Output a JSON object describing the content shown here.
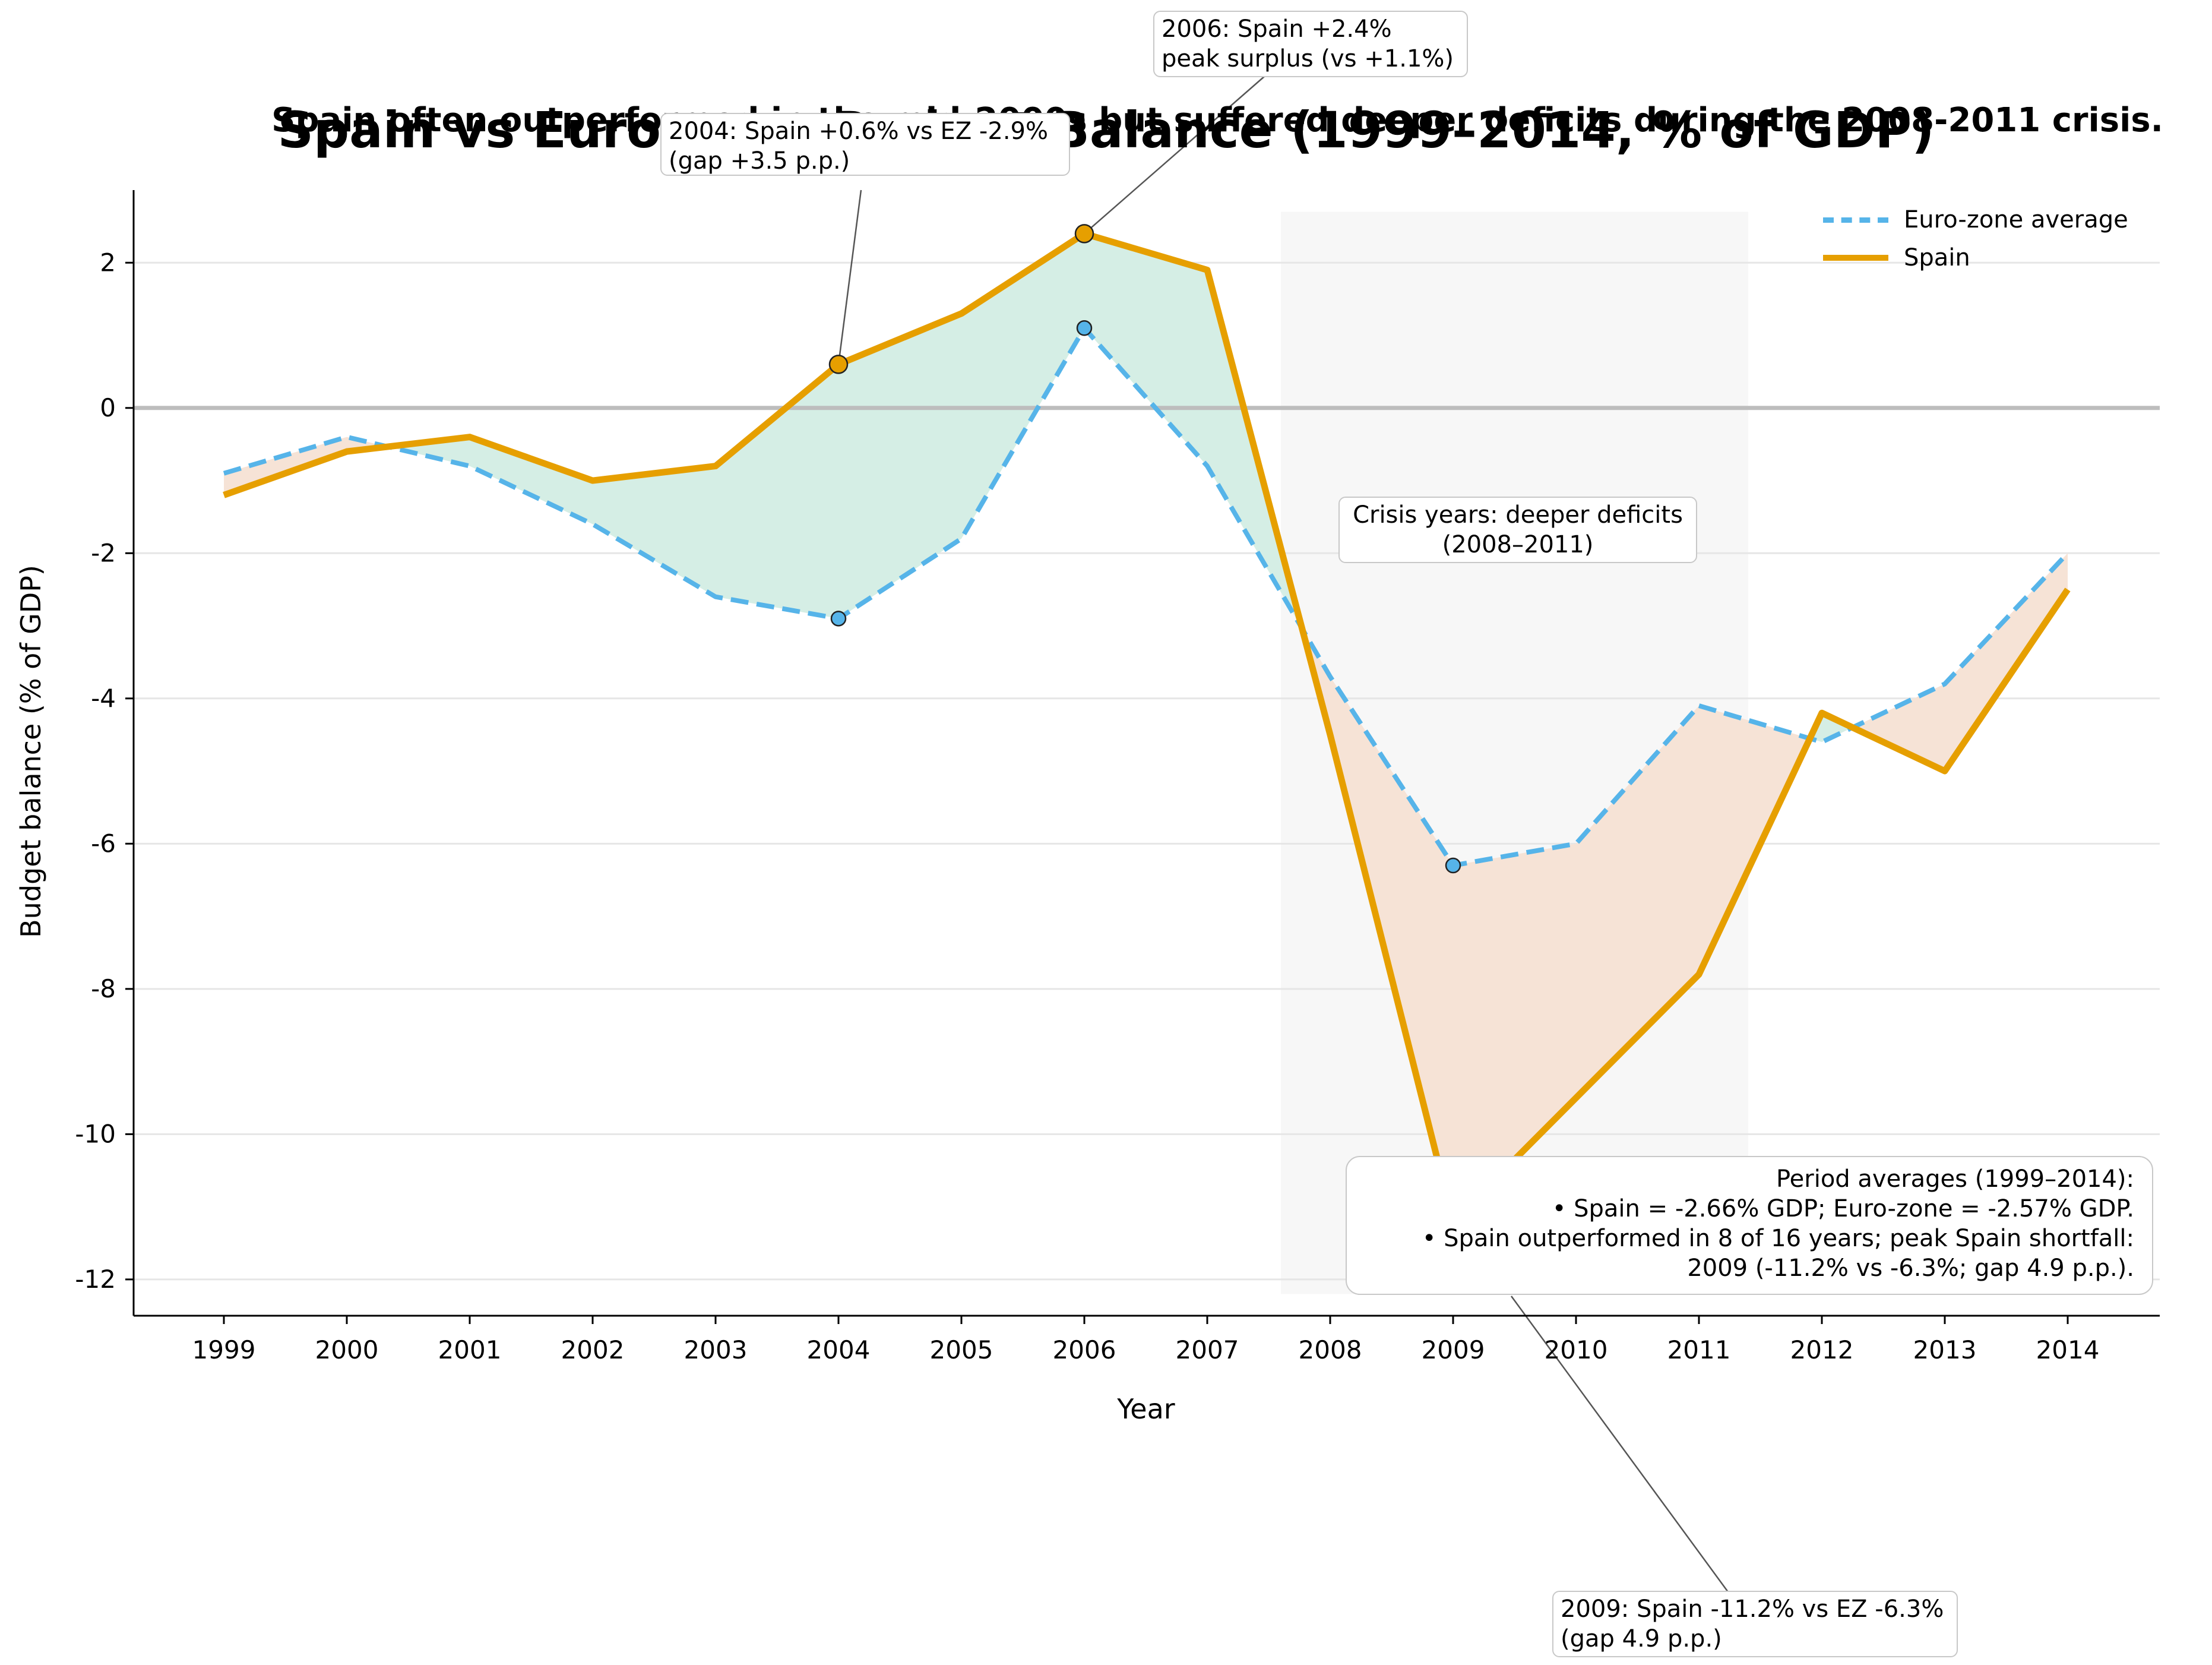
{
  "title": "Spain vs Euro-zone Budget Balance (1999–2014, % of GDP)",
  "subtitle": "Spain often outperformed in the mid-2000s but suffered deeper deficits during the 2008-2011 crisis.",
  "chart_data": {
    "type": "line",
    "x": [
      1999,
      2000,
      2001,
      2002,
      2003,
      2004,
      2005,
      2006,
      2007,
      2008,
      2009,
      2010,
      2011,
      2012,
      2013,
      2014
    ],
    "series": [
      {
        "name": "Euro-zone average",
        "color": "#56b4e9",
        "style": "dashed",
        "values": [
          -0.9,
          -0.4,
          -0.8,
          -1.6,
          -2.6,
          -2.9,
          -1.8,
          1.1,
          -0.8,
          -3.7,
          -6.3,
          -6.0,
          -4.1,
          -4.6,
          -3.8,
          -2.0
        ]
      },
      {
        "name": "Spain",
        "color": "#e69f00",
        "style": "solid",
        "values": [
          -1.2,
          -0.6,
          -0.4,
          -1.0,
          -0.8,
          0.6,
          1.3,
          2.4,
          1.9,
          -4.5,
          -11.2,
          -9.5,
          -7.8,
          -4.2,
          -5.0,
          -2.5
        ]
      }
    ],
    "xlabel": "Year",
    "ylabel": "Budget balance (% of GDP)",
    "ylim": [
      -12.5,
      3.0
    ],
    "yticks": [
      2,
      0,
      -2,
      -4,
      -6,
      -8,
      -10,
      -12
    ],
    "ytick_labels": [
      "2",
      "0",
      "-2",
      "-4",
      "-6",
      "-8",
      "-10",
      "-12"
    ],
    "xtick_labels": [
      "1999",
      "2000",
      "2001",
      "2002",
      "2003",
      "2004",
      "2005",
      "2006",
      "2007",
      "2008",
      "2009",
      "2010",
      "2011",
      "2012",
      "2013",
      "2014"
    ],
    "grid": "horizontal",
    "legend_position": "top-right",
    "fill_colors": {
      "spain_above": "#d5eee5",
      "spain_below": "#f6e3d6"
    },
    "shaded_region": {
      "from": 2007.6,
      "to": 2011.4,
      "color": "#f7f7f7"
    },
    "highlight_points": [
      {
        "series": "Spain",
        "x": 2004,
        "y": 0.6
      },
      {
        "series": "Euro-zone average",
        "x": 2004,
        "y": -2.9
      },
      {
        "series": "Spain",
        "x": 2006,
        "y": 2.4
      },
      {
        "series": "Euro-zone average",
        "x": 2006,
        "y": 1.1
      },
      {
        "series": "Spain",
        "x": 2009,
        "y": -11.2
      },
      {
        "series": "Euro-zone average",
        "x": 2009,
        "y": -6.3
      }
    ],
    "annotations": {
      "a2004": {
        "lines": [
          "2004: Spain +0.6% vs EZ -2.9%",
          "(gap +3.5 p.p.)"
        ],
        "x": 2004,
        "y": 0.6
      },
      "a2006": {
        "lines": [
          "2006: Spain +2.4%",
          "peak surplus (vs +1.1%)"
        ],
        "x": 2006,
        "y": 2.4
      },
      "a2009": {
        "lines": [
          "2009: Spain -11.2% vs EZ -6.3%",
          "(gap 4.9 p.p.)"
        ],
        "x": 2009,
        "y": -11.2
      },
      "crisis": {
        "lines": [
          "Crisis years: deeper deficits",
          "(2008–2011)"
        ]
      },
      "averages": {
        "lines": [
          "Period averages (1999–2014):",
          "• Spain = -2.66% GDP; Euro-zone = -2.57% GDP.",
          "• Spain outperformed in 8 of 16 years; peak Spain shortfall:",
          "2009 (-11.2% vs -6.3%; gap 4.9 p.p.)."
        ]
      }
    }
  }
}
